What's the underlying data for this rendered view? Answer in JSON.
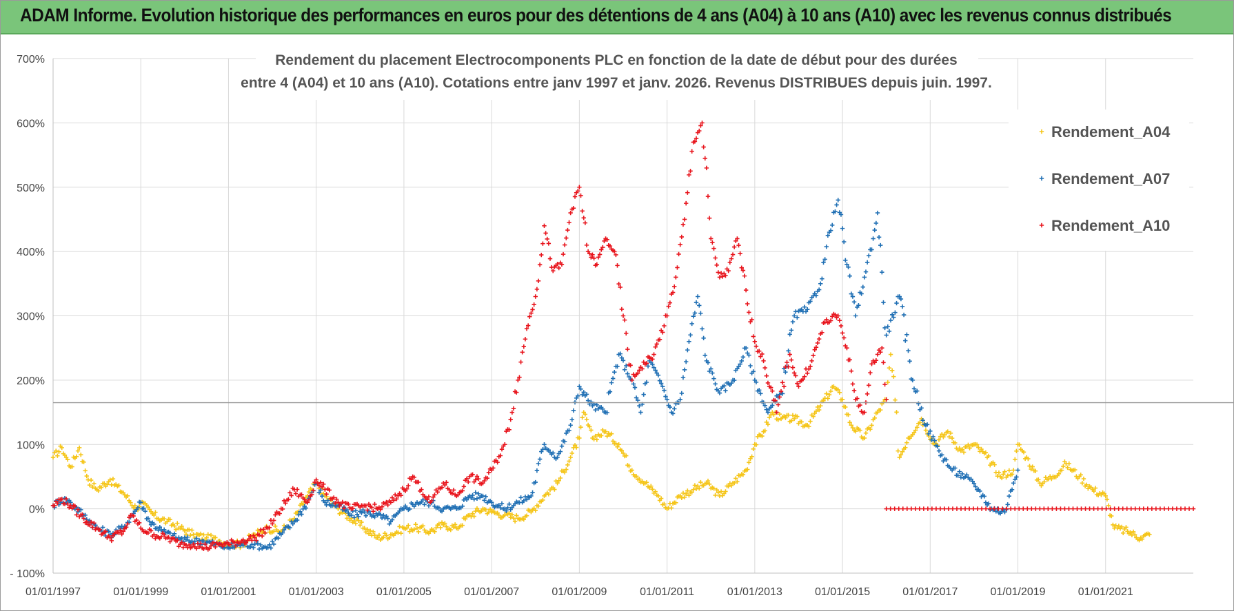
{
  "header": {
    "banner_text": "ADAM Informe. Evolution historique des performances en euros pour des détentions de 4 ans (A04) à 10 ans (A10) avec les revenus connus distribués"
  },
  "chart_data": {
    "type": "scatter",
    "title_line1": "Rendement du placement Electrocomponents PLC en fonction de la date de début pour des durées",
    "title_line2": "entre 4 (A04) et 10 ans (A10).  Cotations entre janv 1997 et janv. 2026. Revenus DISTRIBUES depuis juin. 1997.",
    "xlabel": "",
    "ylabel": "",
    "xlim": [
      1997.0,
      2023.0
    ],
    "ylim": [
      -100,
      700
    ],
    "x_ticks": [
      "01/01/1997",
      "01/01/1999",
      "01/01/2001",
      "01/01/2003",
      "01/01/2005",
      "01/01/2007",
      "01/01/2009",
      "01/01/2011",
      "01/01/2013",
      "01/01/2015",
      "01/01/2017",
      "01/01/2019",
      "01/01/2021"
    ],
    "y_ticks": [
      "- 100%",
      "0%",
      "100%",
      "200%",
      "300%",
      "400%",
      "500%",
      "600%",
      "700%"
    ],
    "grid": true,
    "legend_position": "top-right",
    "marker": "+",
    "colors": {
      "A04": "#f5c518",
      "A07": "#1f6fb4",
      "A10": "#e8141c",
      "banner": "#7ac57a"
    },
    "series": [
      {
        "name": "Rendement_A04",
        "key": "A04",
        "points": [
          [
            1997.0,
            80
          ],
          [
            1997.2,
            95
          ],
          [
            1997.4,
            65
          ],
          [
            1997.6,
            95
          ],
          [
            1997.8,
            45
          ],
          [
            1998.0,
            30
          ],
          [
            1998.3,
            45
          ],
          [
            1998.6,
            25
          ],
          [
            1998.9,
            0
          ],
          [
            1999.0,
            10
          ],
          [
            1999.3,
            -10
          ],
          [
            1999.6,
            -20
          ],
          [
            1999.9,
            -30
          ],
          [
            2000.2,
            -40
          ],
          [
            2000.5,
            -45
          ],
          [
            2000.8,
            -50
          ],
          [
            2001.0,
            -55
          ],
          [
            2001.3,
            -55
          ],
          [
            2001.6,
            -40
          ],
          [
            2001.9,
            -30
          ],
          [
            2002.2,
            -35
          ],
          [
            2002.5,
            -15
          ],
          [
            2002.8,
            20
          ],
          [
            2003.0,
            40
          ],
          [
            2003.2,
            20
          ],
          [
            2003.5,
            0
          ],
          [
            2003.8,
            -15
          ],
          [
            2004.1,
            -30
          ],
          [
            2004.4,
            -45
          ],
          [
            2004.7,
            -40
          ],
          [
            2005.0,
            -30
          ],
          [
            2005.3,
            -30
          ],
          [
            2005.6,
            -35
          ],
          [
            2005.9,
            -25
          ],
          [
            2006.2,
            -30
          ],
          [
            2006.5,
            -10
          ],
          [
            2006.8,
            0
          ],
          [
            2007.0,
            -5
          ],
          [
            2007.3,
            -10
          ],
          [
            2007.6,
            -15
          ],
          [
            2007.9,
            -5
          ],
          [
            2008.2,
            20
          ],
          [
            2008.5,
            40
          ],
          [
            2008.8,
            80
          ],
          [
            2009.0,
            110
          ],
          [
            2009.1,
            150
          ],
          [
            2009.3,
            110
          ],
          [
            2009.6,
            120
          ],
          [
            2009.9,
            100
          ],
          [
            2010.2,
            60
          ],
          [
            2010.5,
            40
          ],
          [
            2010.8,
            20
          ],
          [
            2011.0,
            0
          ],
          [
            2011.3,
            20
          ],
          [
            2011.6,
            30
          ],
          [
            2011.9,
            40
          ],
          [
            2012.2,
            20
          ],
          [
            2012.5,
            40
          ],
          [
            2012.8,
            60
          ],
          [
            2013.0,
            100
          ],
          [
            2013.2,
            120
          ],
          [
            2013.4,
            150
          ],
          [
            2013.6,
            140
          ],
          [
            2013.9,
            140
          ],
          [
            2014.2,
            130
          ],
          [
            2014.5,
            160
          ],
          [
            2014.8,
            190
          ],
          [
            2015.0,
            170
          ],
          [
            2015.2,
            130
          ],
          [
            2015.5,
            110
          ],
          [
            2015.8,
            150
          ],
          [
            2016.0,
            170
          ],
          [
            2016.1,
            240
          ],
          [
            2016.3,
            80
          ],
          [
            2016.5,
            110
          ],
          [
            2016.8,
            140
          ],
          [
            2017.1,
            100
          ],
          [
            2017.4,
            120
          ],
          [
            2017.7,
            90
          ],
          [
            2018.0,
            100
          ],
          [
            2018.3,
            80
          ],
          [
            2018.6,
            50
          ],
          [
            2018.9,
            60
          ],
          [
            2019.0,
            100
          ],
          [
            2019.2,
            80
          ],
          [
            2019.5,
            40
          ],
          [
            2019.8,
            50
          ],
          [
            2020.1,
            70
          ],
          [
            2020.4,
            50
          ],
          [
            2020.7,
            30
          ],
          [
            2021.0,
            20
          ],
          [
            2021.2,
            -30
          ],
          [
            2021.5,
            -35
          ],
          [
            2021.8,
            -45
          ],
          [
            2022.0,
            -40
          ]
        ]
      },
      {
        "name": "Rendement_A07",
        "key": "A07",
        "points": [
          [
            1997.0,
            5
          ],
          [
            1997.2,
            15
          ],
          [
            1997.4,
            10
          ],
          [
            1997.7,
            -10
          ],
          [
            1998.0,
            -30
          ],
          [
            1998.3,
            -40
          ],
          [
            1998.6,
            -30
          ],
          [
            1998.8,
            -10
          ],
          [
            1999.0,
            10
          ],
          [
            1999.2,
            -20
          ],
          [
            1999.5,
            -35
          ],
          [
            1999.8,
            -45
          ],
          [
            2000.1,
            -50
          ],
          [
            2000.4,
            -50
          ],
          [
            2000.7,
            -55
          ],
          [
            2001.0,
            -60
          ],
          [
            2001.3,
            -55
          ],
          [
            2001.6,
            -55
          ],
          [
            2001.9,
            -60
          ],
          [
            2002.2,
            -40
          ],
          [
            2002.5,
            -20
          ],
          [
            2002.8,
            10
          ],
          [
            2003.0,
            40
          ],
          [
            2003.2,
            10
          ],
          [
            2003.5,
            5
          ],
          [
            2003.8,
            -10
          ],
          [
            2004.1,
            -5
          ],
          [
            2004.4,
            -10
          ],
          [
            2004.7,
            -20
          ],
          [
            2005.0,
            0
          ],
          [
            2005.3,
            10
          ],
          [
            2005.6,
            10
          ],
          [
            2005.9,
            0
          ],
          [
            2006.2,
            0
          ],
          [
            2006.5,
            20
          ],
          [
            2006.8,
            20
          ],
          [
            2007.0,
            10
          ],
          [
            2007.3,
            0
          ],
          [
            2007.6,
            10
          ],
          [
            2007.9,
            20
          ],
          [
            2008.2,
            100
          ],
          [
            2008.5,
            80
          ],
          [
            2008.8,
            130
          ],
          [
            2009.0,
            190
          ],
          [
            2009.3,
            160
          ],
          [
            2009.6,
            150
          ],
          [
            2009.9,
            240
          ],
          [
            2010.2,
            200
          ],
          [
            2010.4,
            150
          ],
          [
            2010.6,
            230
          ],
          [
            2010.9,
            190
          ],
          [
            2011.1,
            150
          ],
          [
            2011.3,
            170
          ],
          [
            2011.5,
            260
          ],
          [
            2011.7,
            330
          ],
          [
            2011.9,
            230
          ],
          [
            2012.2,
            180
          ],
          [
            2012.5,
            200
          ],
          [
            2012.8,
            250
          ],
          [
            2013.0,
            200
          ],
          [
            2013.3,
            150
          ],
          [
            2013.6,
            180
          ],
          [
            2013.9,
            300
          ],
          [
            2014.2,
            310
          ],
          [
            2014.5,
            350
          ],
          [
            2014.7,
            430
          ],
          [
            2014.9,
            480
          ],
          [
            2015.1,
            380
          ],
          [
            2015.3,
            300
          ],
          [
            2015.5,
            360
          ],
          [
            2015.7,
            420
          ],
          [
            2015.8,
            460
          ],
          [
            2016.0,
            270
          ],
          [
            2016.3,
            330
          ],
          [
            2016.6,
            200
          ],
          [
            2016.9,
            130
          ],
          [
            2017.2,
            90
          ],
          [
            2017.5,
            60
          ],
          [
            2017.8,
            50
          ],
          [
            2018.1,
            30
          ],
          [
            2018.4,
            0
          ],
          [
            2018.7,
            -5
          ],
          [
            2018.9,
            40
          ],
          [
            2019.0,
            60
          ]
        ]
      },
      {
        "name": "Rendement_A10",
        "key": "A10",
        "points": [
          [
            1997.0,
            5
          ],
          [
            1997.2,
            15
          ],
          [
            1997.4,
            5
          ],
          [
            1997.7,
            -15
          ],
          [
            1998.0,
            -30
          ],
          [
            1998.3,
            -45
          ],
          [
            1998.6,
            -35
          ],
          [
            1998.8,
            -10
          ],
          [
            1999.0,
            -30
          ],
          [
            1999.3,
            -40
          ],
          [
            1999.6,
            -45
          ],
          [
            1999.9,
            -55
          ],
          [
            2000.2,
            -55
          ],
          [
            2000.5,
            -60
          ],
          [
            2000.8,
            -55
          ],
          [
            2001.0,
            -55
          ],
          [
            2001.3,
            -50
          ],
          [
            2001.6,
            -45
          ],
          [
            2001.9,
            -30
          ],
          [
            2002.2,
            0
          ],
          [
            2002.5,
            30
          ],
          [
            2002.8,
            10
          ],
          [
            2003.0,
            45
          ],
          [
            2003.2,
            30
          ],
          [
            2003.5,
            10
          ],
          [
            2003.8,
            0
          ],
          [
            2004.1,
            5
          ],
          [
            2004.4,
            0
          ],
          [
            2004.7,
            10
          ],
          [
            2005.0,
            30
          ],
          [
            2005.2,
            50
          ],
          [
            2005.4,
            30
          ],
          [
            2005.6,
            10
          ],
          [
            2005.9,
            40
          ],
          [
            2006.2,
            20
          ],
          [
            2006.5,
            50
          ],
          [
            2006.8,
            40
          ],
          [
            2007.0,
            60
          ],
          [
            2007.3,
            100
          ],
          [
            2007.6,
            200
          ],
          [
            2007.8,
            280
          ],
          [
            2008.0,
            330
          ],
          [
            2008.2,
            440
          ],
          [
            2008.4,
            370
          ],
          [
            2008.6,
            380
          ],
          [
            2008.8,
            460
          ],
          [
            2009.0,
            500
          ],
          [
            2009.2,
            400
          ],
          [
            2009.4,
            380
          ],
          [
            2009.6,
            420
          ],
          [
            2009.8,
            400
          ],
          [
            2010.0,
            300
          ],
          [
            2010.2,
            200
          ],
          [
            2010.4,
            220
          ],
          [
            2010.7,
            240
          ],
          [
            2011.0,
            300
          ],
          [
            2011.2,
            360
          ],
          [
            2011.4,
            450
          ],
          [
            2011.6,
            570
          ],
          [
            2011.8,
            600
          ],
          [
            2012.0,
            420
          ],
          [
            2012.2,
            360
          ],
          [
            2012.4,
            370
          ],
          [
            2012.6,
            420
          ],
          [
            2012.8,
            340
          ],
          [
            2013.0,
            260
          ],
          [
            2013.2,
            230
          ],
          [
            2013.5,
            150
          ],
          [
            2013.8,
            240
          ],
          [
            2014.0,
            190
          ],
          [
            2014.3,
            230
          ],
          [
            2014.6,
            290
          ],
          [
            2014.9,
            300
          ],
          [
            2015.1,
            250
          ],
          [
            2015.3,
            170
          ],
          [
            2015.5,
            150
          ],
          [
            2015.7,
            230
          ],
          [
            2015.9,
            250
          ],
          [
            2016.0,
            170
          ]
        ]
      },
      {
        "name": "zero_line_A10",
        "key": "A10",
        "points": [
          [
            2016.0,
            0
          ],
          [
            2023.0,
            0
          ]
        ]
      }
    ],
    "legend": [
      "Rendement_A04",
      "Rendement_A07",
      "Rendement_A10"
    ],
    "annotations": [
      {
        "type": "hline",
        "y": 165,
        "color": "#999999"
      }
    ]
  }
}
